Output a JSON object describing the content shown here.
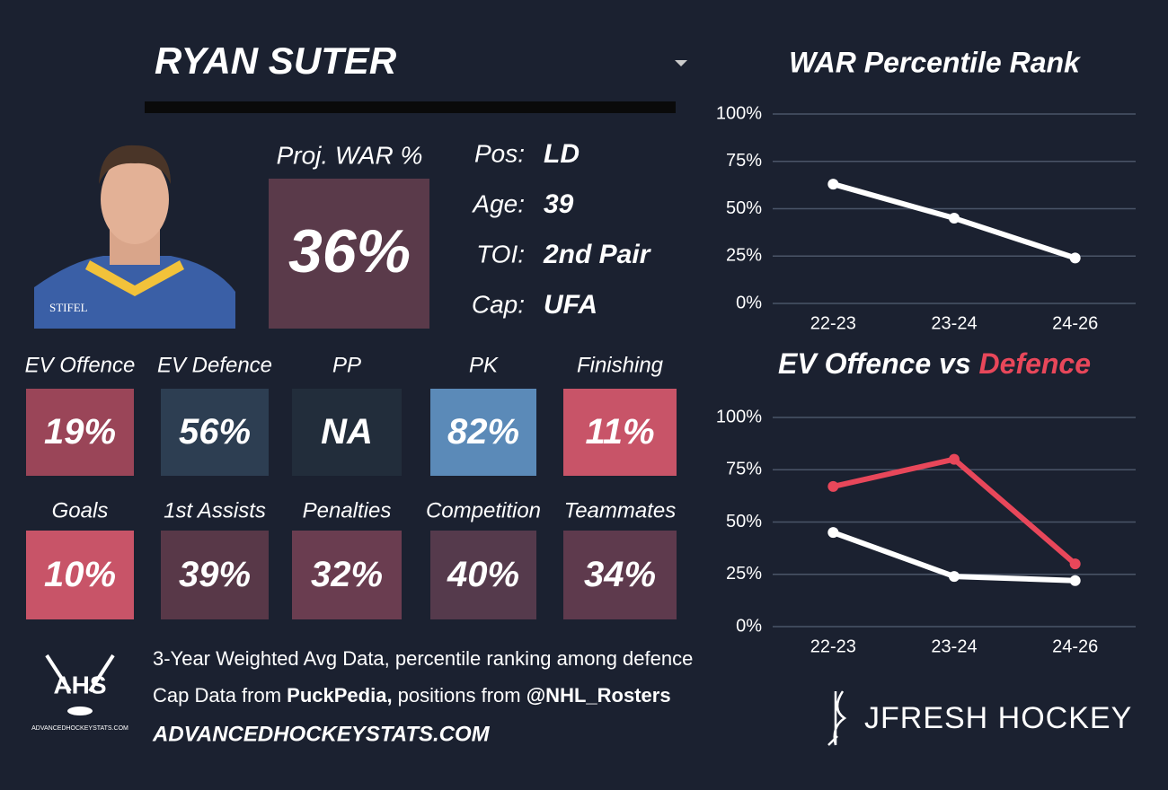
{
  "header": {
    "name": "RYAN SUTER"
  },
  "projection": {
    "label": "Proj. WAR %",
    "value": "36%",
    "color": "#5a3a4a"
  },
  "info": [
    {
      "label": "Pos:",
      "value": "LD"
    },
    {
      "label": "Age:",
      "value": "39"
    },
    {
      "label": "TOI:",
      "value": "2nd Pair"
    },
    {
      "label": "Cap:",
      "value": "UFA"
    }
  ],
  "stats": [
    [
      {
        "label": "EV Offence",
        "value": "19%",
        "color": "#9a4558"
      },
      {
        "label": "EV Defence",
        "value": "56%",
        "color": "#2d3e52"
      },
      {
        "label": "PP",
        "value": "NA",
        "color": "#222d3b"
      },
      {
        "label": "PK",
        "value": "82%",
        "color": "#5b8ab8"
      },
      {
        "label": "Finishing",
        "value": "11%",
        "color": "#c85468"
      }
    ],
    [
      {
        "label": "Goals",
        "value": "10%",
        "color": "#c85468"
      },
      {
        "label": "1st Assists",
        "value": "39%",
        "color": "#583848"
      },
      {
        "label": "Penalties",
        "value": "32%",
        "color": "#6a3d50"
      },
      {
        "label": "Competition",
        "value": "40%",
        "color": "#553a4c"
      },
      {
        "label": "Teammates",
        "value": "34%",
        "color": "#5e3a4d"
      }
    ]
  ],
  "footer": {
    "line1": "3-Year Weighted Avg Data, percentile ranking among defence",
    "line2": [
      {
        "text": "Cap Data from ",
        "bold": false
      },
      {
        "text": "PuckPedia,",
        "bold": true
      },
      {
        "text": " positions from ",
        "bold": false
      },
      {
        "text": "@NHL_Rosters",
        "bold": true
      }
    ],
    "site": "ADVANCEDHOCKEYSTATS.COM"
  },
  "logos": {
    "ahs": "AHS",
    "ahs_site": "ADVANCEDHOCKEYSTATS.COM",
    "brand": "JFRESH HOCKEY"
  },
  "chart_data": [
    {
      "type": "line",
      "title": "WAR Percentile Rank",
      "categories": [
        "22-23",
        "23-24",
        "24-26"
      ],
      "series": [
        {
          "color": "#ffffff",
          "values": [
            63,
            45,
            24
          ]
        }
      ],
      "ylim": [
        0,
        100
      ],
      "yticks": [
        {
          "value": 0,
          "label": "0%"
        },
        {
          "value": 25,
          "label": "25%"
        },
        {
          "value": 50,
          "label": "50%"
        },
        {
          "value": 75,
          "label": "75%"
        },
        {
          "value": 100,
          "label": "100%"
        }
      ],
      "grid": true
    },
    {
      "type": "line",
      "title_parts": [
        {
          "text": "EV Offence vs ",
          "color": "#ffffff"
        },
        {
          "text": "Defence",
          "color": "#e8475a"
        }
      ],
      "categories": [
        "22-23",
        "23-24",
        "24-26"
      ],
      "series": [
        {
          "color": "#ffffff",
          "values": [
            45,
            24,
            22
          ]
        },
        {
          "color": "#e8475a",
          "values": [
            67,
            80,
            30
          ]
        }
      ],
      "ylim": [
        0,
        100
      ],
      "yticks": [
        {
          "value": 0,
          "label": "0%"
        },
        {
          "value": 25,
          "label": "25%"
        },
        {
          "value": 50,
          "label": "50%"
        },
        {
          "value": 75,
          "label": "75%"
        },
        {
          "value": 100,
          "label": "100%"
        }
      ],
      "grid": true
    }
  ]
}
